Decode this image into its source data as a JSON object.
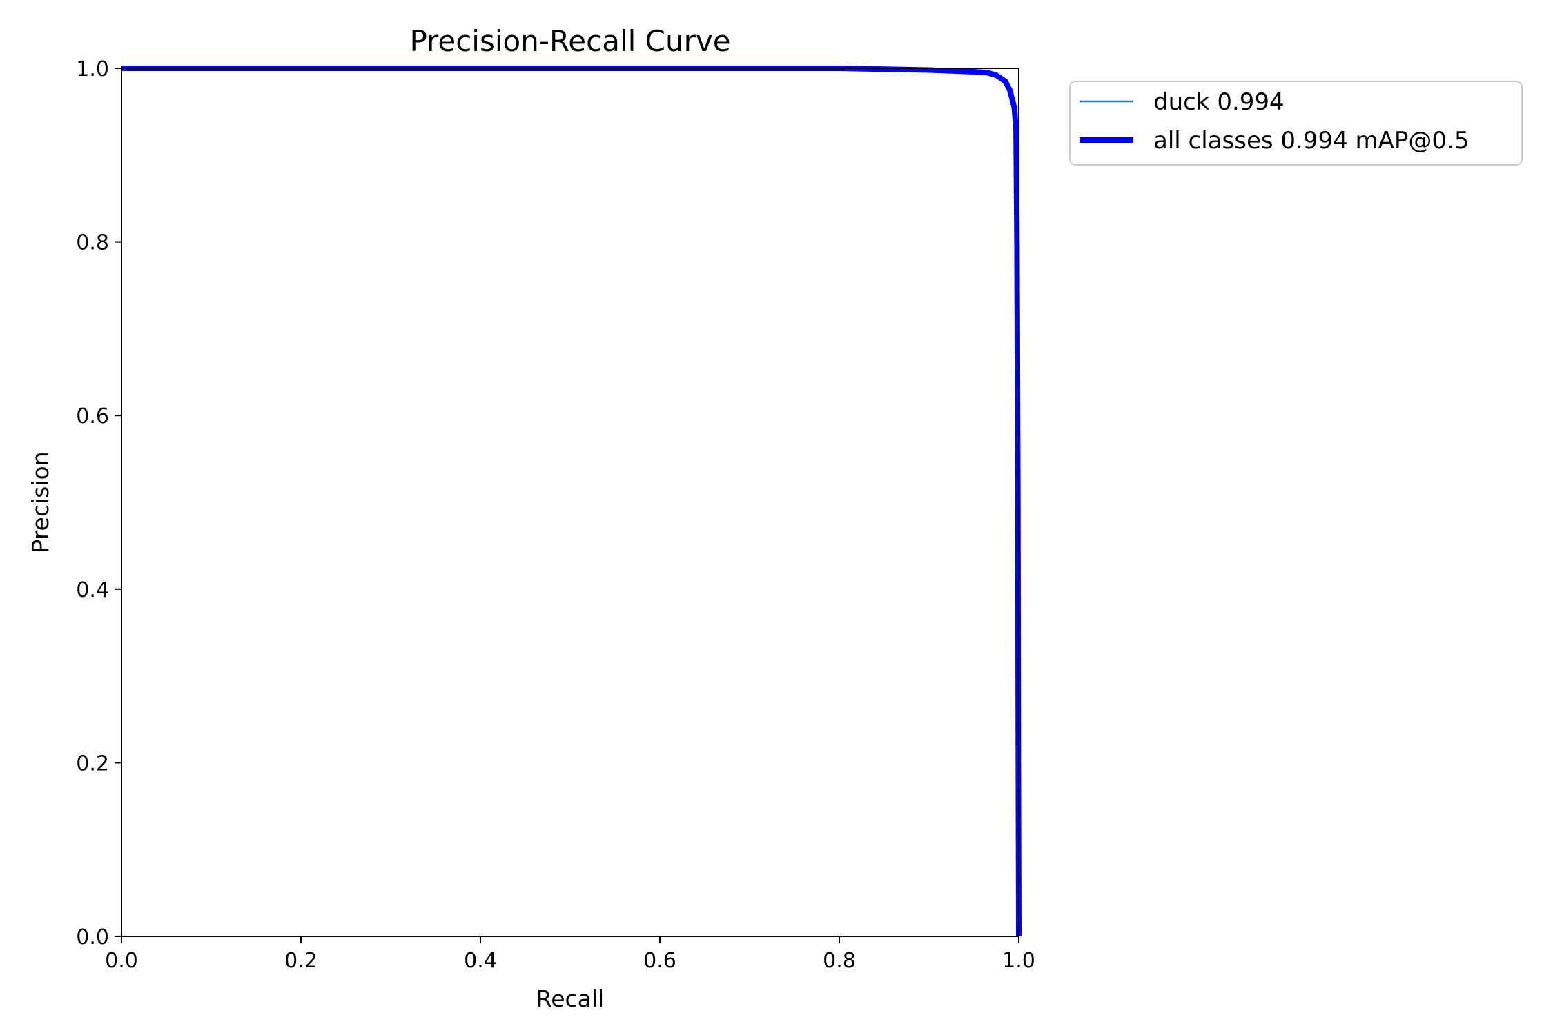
{
  "chart_data": {
    "type": "line",
    "title": "Precision-Recall Curve",
    "xlabel": "Recall",
    "ylabel": "Precision",
    "xlim": [
      0.0,
      1.0
    ],
    "ylim": [
      0.0,
      1.0
    ],
    "x_ticks": [
      "0.0",
      "0.2",
      "0.4",
      "0.6",
      "0.8",
      "1.0"
    ],
    "y_ticks": [
      "0.0",
      "0.2",
      "0.4",
      "0.6",
      "0.8",
      "1.0"
    ],
    "grid": false,
    "legend_position": "outside-right-top",
    "series": [
      {
        "name": "duck 0.994",
        "color": "#1f77b4",
        "line_width": "thin",
        "x": [
          0.0,
          0.5,
          0.8,
          0.9,
          0.95,
          0.965,
          0.975,
          0.985,
          0.99,
          0.995,
          0.997,
          0.998,
          0.999,
          0.9995,
          1.0
        ],
        "y": [
          1.0,
          1.0,
          1.0,
          0.998,
          0.996,
          0.995,
          0.992,
          0.985,
          0.975,
          0.955,
          0.93,
          0.8,
          0.5,
          0.2,
          0.0
        ]
      },
      {
        "name": "all classes 0.994 mAP@0.5",
        "color": "#0000ff",
        "line_width": "thick",
        "x": [
          0.0,
          0.5,
          0.8,
          0.9,
          0.95,
          0.965,
          0.975,
          0.985,
          0.99,
          0.995,
          0.997,
          0.998,
          0.999,
          0.9995,
          1.0
        ],
        "y": [
          1.0,
          1.0,
          1.0,
          0.998,
          0.996,
          0.995,
          0.992,
          0.985,
          0.975,
          0.955,
          0.93,
          0.8,
          0.5,
          0.2,
          0.0
        ]
      }
    ]
  }
}
